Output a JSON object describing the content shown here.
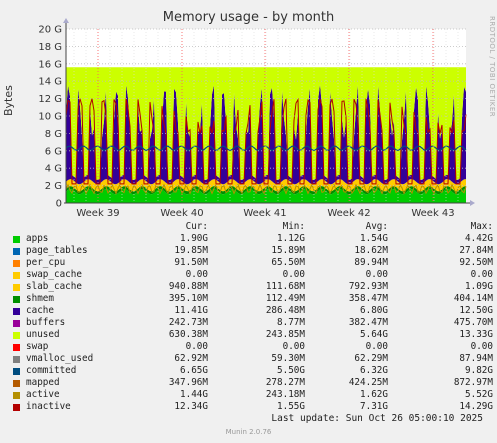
{
  "chart_data": {
    "type": "area",
    "title": "Memory usage - by month",
    "ylabel": "Bytes",
    "ylim": [
      0,
      20
    ],
    "y_unit": "G",
    "y_ticks": [
      "0",
      "2 G",
      "4 G",
      "6 G",
      "8 G",
      "10 G",
      "12 G",
      "14 G",
      "16 G",
      "18 G",
      "20 G"
    ],
    "x_ticks": [
      "Week 39",
      "Week 40",
      "Week 41",
      "Week 42",
      "Week 43"
    ],
    "grid": true,
    "series": [
      {
        "name": "apps",
        "color": "#00cc00",
        "cur": "1.90G",
        "min": "1.12G",
        "avg": "1.54G",
        "max": "4.42G"
      },
      {
        "name": "page_tables",
        "color": "#0066b3",
        "cur": "19.85M",
        "min": "15.89M",
        "avg": "18.62M",
        "max": "27.84M"
      },
      {
        "name": "per_cpu",
        "color": "#ff8000",
        "cur": "91.50M",
        "min": "65.50M",
        "avg": "89.94M",
        "max": "92.50M"
      },
      {
        "name": "swap_cache",
        "color": "#ffcc00",
        "cur": "0.00",
        "min": "0.00",
        "avg": "0.00",
        "max": "0.00"
      },
      {
        "name": "slab_cache",
        "color": "#ffcc00",
        "cur": "940.88M",
        "min": "111.68M",
        "avg": "792.93M",
        "max": "1.09G"
      },
      {
        "name": "shmem",
        "color": "#008f00",
        "cur": "395.10M",
        "min": "112.49M",
        "avg": "358.47M",
        "max": "404.14M"
      },
      {
        "name": "cache",
        "color": "#330099",
        "cur": "11.41G",
        "min": "286.48M",
        "avg": "6.80G",
        "max": "12.50G"
      },
      {
        "name": "buffers",
        "color": "#990099",
        "cur": "242.73M",
        "min": "8.77M",
        "avg": "382.47M",
        "max": "475.70M"
      },
      {
        "name": "unused",
        "color": "#ccff00",
        "cur": "630.38M",
        "min": "243.85M",
        "avg": "5.64G",
        "max": "13.33G"
      },
      {
        "name": "swap",
        "color": "#ff0000",
        "cur": "0.00",
        "min": "0.00",
        "avg": "0.00",
        "max": "0.00"
      },
      {
        "name": "vmalloc_used",
        "color": "#808080",
        "cur": "62.92M",
        "min": "59.30M",
        "avg": "62.29M",
        "max": "87.94M"
      },
      {
        "name": "committed",
        "color": "#004d80",
        "cur": "6.65G",
        "min": "5.50G",
        "avg": "6.32G",
        "max": "9.82G"
      },
      {
        "name": "mapped",
        "color": "#b35a00",
        "cur": "347.96M",
        "min": "278.27M",
        "avg": "424.25M",
        "max": "872.97M"
      },
      {
        "name": "active",
        "color": "#b38f00",
        "cur": "1.44G",
        "min": "243.18M",
        "avg": "1.62G",
        "max": "5.52G"
      },
      {
        "name": "inactive",
        "color": "#b30000",
        "cur": "12.34G",
        "min": "1.55G",
        "avg": "7.31G",
        "max": "14.29G"
      }
    ]
  },
  "side_text": "RRDTOOL / TOBI OETIKER",
  "legend_headers": {
    "cur": "Cur:",
    "min": "Min:",
    "avg": "Avg:",
    "max": "Max:"
  },
  "last_update": "Last update: Sun Oct 26 05:00:10 2025",
  "footer": "Munin 2.0.76"
}
